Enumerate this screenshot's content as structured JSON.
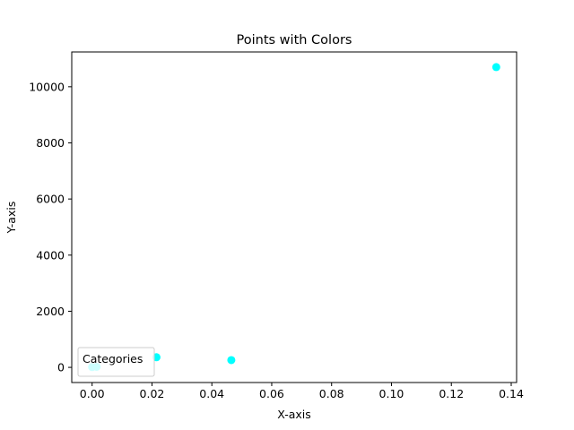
{
  "chart_data": {
    "type": "scatter",
    "title": "Points with Colors",
    "xlabel": "X-axis",
    "ylabel": "Y-axis",
    "xlim": [
      -0.0068,
      0.1418
    ],
    "ylim": [
      -540,
      11240
    ],
    "xticks": [
      0.0,
      0.02,
      0.04,
      0.06,
      0.08,
      0.1,
      0.12,
      0.14
    ],
    "xtick_labels": [
      "0.00",
      "0.02",
      "0.04",
      "0.06",
      "0.08",
      "0.10",
      "0.12",
      "0.14"
    ],
    "yticks": [
      0,
      2000,
      4000,
      6000,
      8000,
      10000
    ],
    "ytick_labels": [
      "0",
      "2000",
      "4000",
      "6000",
      "8000",
      "10000"
    ],
    "grid": false,
    "legend": {
      "title": "Categories",
      "placement": "lower-left"
    },
    "points": [
      {
        "x": 0.0,
        "y": 10,
        "color": "#00ffff"
      },
      {
        "x": 0.0015,
        "y": 20,
        "color": "#00ffff"
      },
      {
        "x": 0.0215,
        "y": 360,
        "color": "#00ffff"
      },
      {
        "x": 0.0465,
        "y": 260,
        "color": "#00ffff"
      },
      {
        "x": 0.135,
        "y": 10700,
        "color": "#00ffff"
      }
    ]
  }
}
